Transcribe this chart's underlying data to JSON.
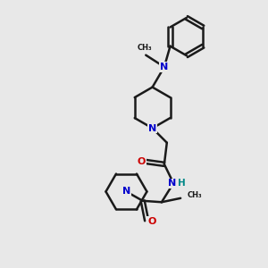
{
  "bg_color": "#e8e8e8",
  "bond_color": "#1a1a1a",
  "N_color": "#0000cc",
  "O_color": "#cc0000",
  "H_color": "#008888",
  "linewidth": 1.8,
  "figsize": [
    3.0,
    3.0
  ],
  "dpi": 100,
  "xlim": [
    0,
    10
  ],
  "ylim": [
    0,
    10
  ]
}
